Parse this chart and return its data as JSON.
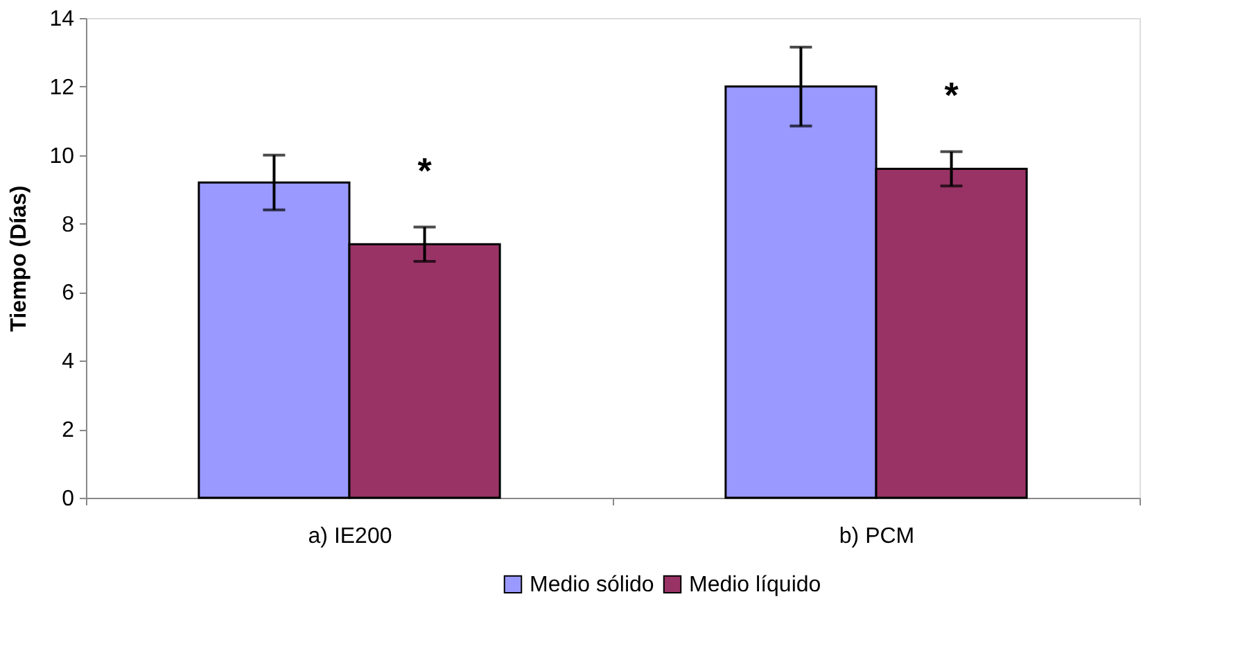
{
  "chart_data": {
    "type": "bar",
    "ylabel": "Tiempo (Días)",
    "categories": [
      "a) IE200",
      "b) PCM"
    ],
    "series": [
      {
        "name": "Medio sólido",
        "color": "#9999ff",
        "values": [
          9.2,
          12.0
        ],
        "errors": [
          0.8,
          1.15
        ]
      },
      {
        "name": "Medio líquido",
        "color": "#993366",
        "values": [
          7.4,
          9.6
        ],
        "errors": [
          0.5,
          0.5
        ]
      }
    ],
    "annotations": [
      "*",
      "*"
    ],
    "ylim": [
      0,
      14
    ],
    "yticks": [
      0,
      2,
      4,
      6,
      8,
      10,
      12,
      14
    ],
    "grid": false,
    "legend": "bottom"
  }
}
